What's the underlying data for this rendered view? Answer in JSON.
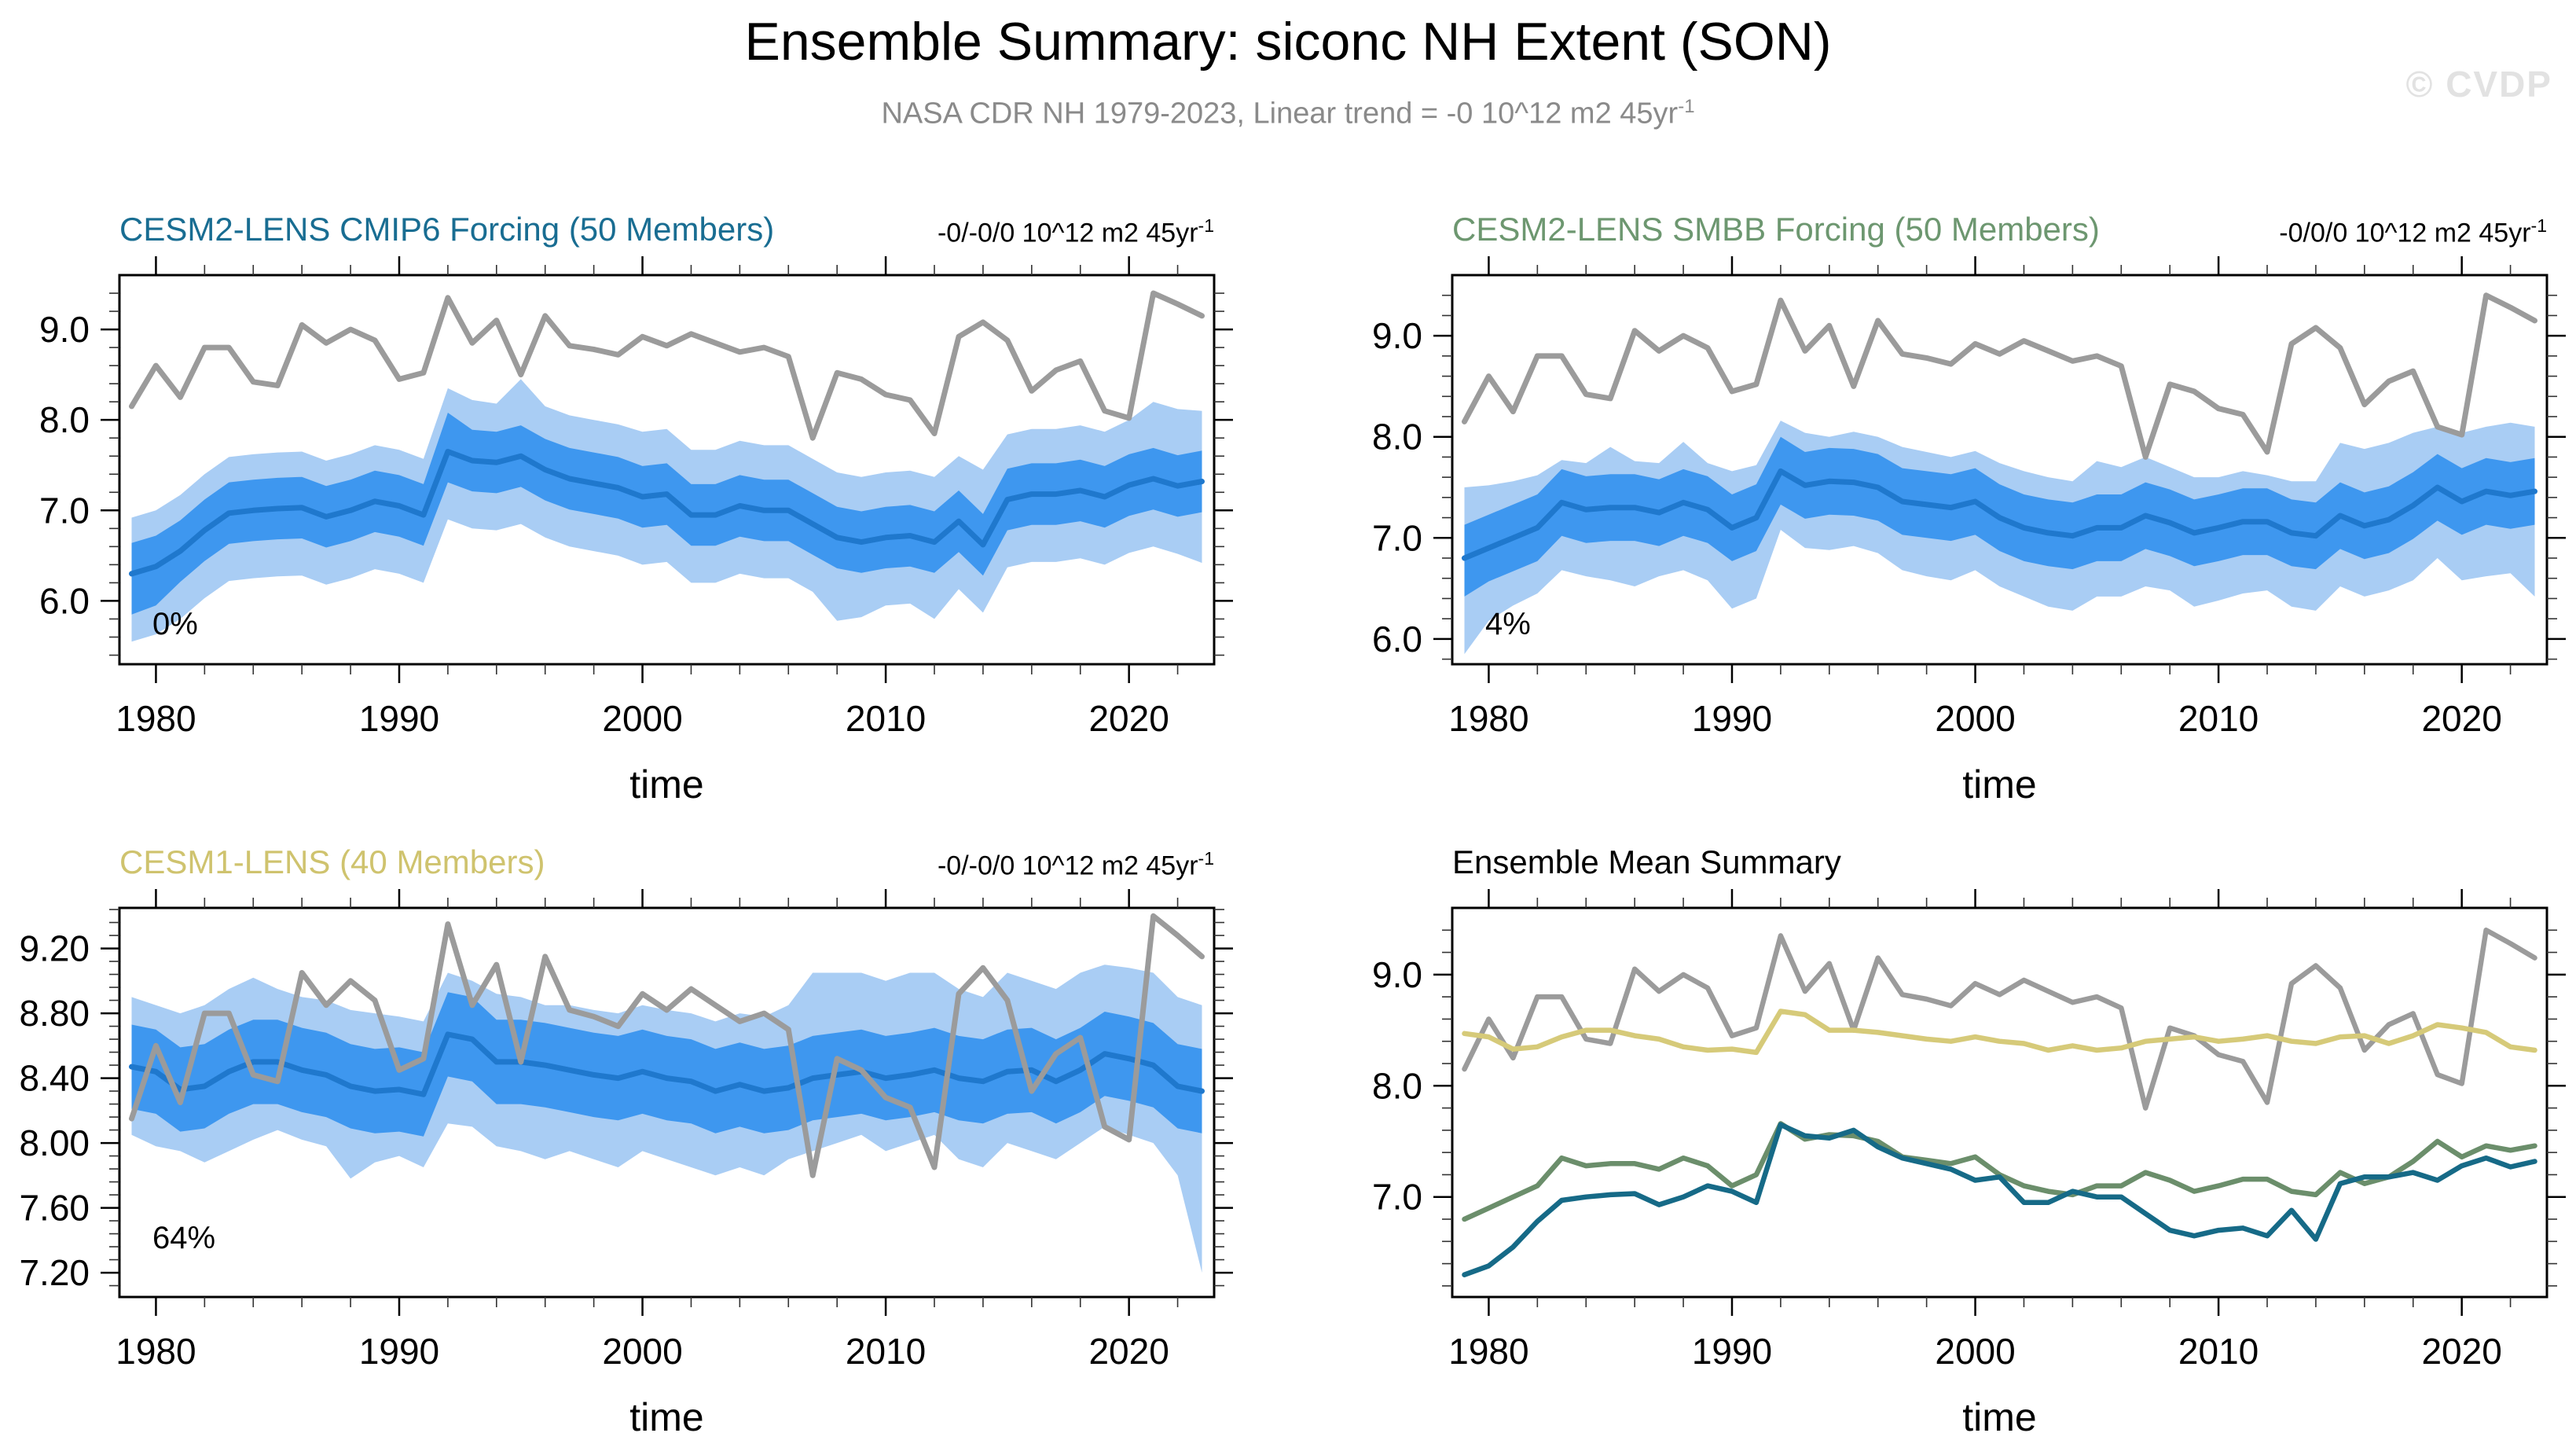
{
  "header": {
    "title": "Ensemble Summary: siconc NH Extent (SON)",
    "subtitle_main": "NASA CDR NH 1979-2023, Linear trend = -0 10^12 m2 45yr",
    "subtitle_sup": "-1",
    "watermark": "© CVDP"
  },
  "colors": {
    "obs": "#9b9b9b",
    "mean_line": "#1f78cd",
    "inner_band": "#3e97ef",
    "outer_band": "#a9cdf4",
    "cmip6": "#166a87",
    "smbb": "#6b8e6b",
    "cesm1": "#d6ca79",
    "frame": "#000000"
  },
  "chart_data": {
    "type": "line",
    "x_years": [
      1979,
      1980,
      1981,
      1982,
      1983,
      1984,
      1985,
      1986,
      1987,
      1988,
      1989,
      1990,
      1991,
      1992,
      1993,
      1994,
      1995,
      1996,
      1997,
      1998,
      1999,
      2000,
      2001,
      2002,
      2003,
      2004,
      2005,
      2006,
      2007,
      2008,
      2009,
      2010,
      2011,
      2012,
      2013,
      2014,
      2015,
      2016,
      2017,
      2018,
      2019,
      2020,
      2021,
      2022,
      2023
    ],
    "xlim": [
      1978.5,
      2023.5
    ],
    "xlabel": "time",
    "grid": false,
    "series": {
      "obs": [
        8.15,
        8.6,
        8.25,
        8.8,
        8.8,
        8.42,
        8.38,
        9.05,
        8.85,
        9.0,
        8.88,
        8.45,
        8.52,
        9.35,
        8.85,
        9.1,
        8.5,
        9.15,
        8.82,
        8.78,
        8.72,
        8.92,
        8.82,
        8.95,
        8.85,
        8.75,
        8.8,
        8.7,
        7.8,
        8.52,
        8.45,
        8.28,
        8.22,
        7.85,
        8.92,
        9.08,
        8.88,
        8.32,
        8.55,
        8.65,
        8.1,
        8.02,
        9.4,
        9.28,
        9.15
      ],
      "cmip6": {
        "mean": [
          6.3,
          6.38,
          6.55,
          6.78,
          6.97,
          7.0,
          7.02,
          7.03,
          6.93,
          7.0,
          7.1,
          7.05,
          6.95,
          7.65,
          7.55,
          7.53,
          7.6,
          7.45,
          7.35,
          7.3,
          7.25,
          7.15,
          7.18,
          6.95,
          6.95,
          7.05,
          7.0,
          7.0,
          6.85,
          6.7,
          6.65,
          6.7,
          6.72,
          6.65,
          6.88,
          6.62,
          7.12,
          7.18,
          7.18,
          7.22,
          7.15,
          7.28,
          7.35,
          7.27,
          7.32
        ],
        "inner_lo": [
          5.85,
          5.95,
          6.21,
          6.44,
          6.63,
          6.66,
          6.68,
          6.69,
          6.59,
          6.66,
          6.76,
          6.71,
          6.61,
          7.31,
          7.21,
          7.19,
          7.26,
          7.11,
          7.01,
          6.96,
          6.91,
          6.81,
          6.84,
          6.61,
          6.61,
          6.71,
          6.66,
          6.66,
          6.51,
          6.36,
          6.31,
          6.36,
          6.38,
          6.31,
          6.54,
          6.28,
          6.78,
          6.84,
          6.84,
          6.88,
          6.81,
          6.94,
          7.01,
          6.93,
          6.98
        ],
        "inner_hi": [
          6.64,
          6.72,
          6.89,
          7.12,
          7.31,
          7.34,
          7.36,
          7.37,
          7.27,
          7.34,
          7.44,
          7.39,
          7.29,
          8.08,
          7.89,
          7.87,
          7.94,
          7.79,
          7.69,
          7.64,
          7.59,
          7.49,
          7.52,
          7.29,
          7.29,
          7.39,
          7.34,
          7.34,
          7.19,
          7.04,
          6.99,
          7.04,
          7.06,
          6.99,
          7.22,
          6.96,
          7.46,
          7.52,
          7.52,
          7.56,
          7.49,
          7.62,
          7.69,
          7.61,
          7.66
        ],
        "outer_lo": [
          5.55,
          5.63,
          5.8,
          6.03,
          6.22,
          6.25,
          6.27,
          6.28,
          6.18,
          6.25,
          6.35,
          6.3,
          6.2,
          6.9,
          6.8,
          6.78,
          6.85,
          6.7,
          6.6,
          6.55,
          6.5,
          6.4,
          6.43,
          6.2,
          6.2,
          6.3,
          6.25,
          6.25,
          6.1,
          5.78,
          5.82,
          5.95,
          5.97,
          5.8,
          6.13,
          5.87,
          6.37,
          6.43,
          6.43,
          6.47,
          6.4,
          6.53,
          6.6,
          6.52,
          6.42
        ],
        "outer_hi": [
          6.92,
          7.0,
          7.17,
          7.4,
          7.59,
          7.62,
          7.64,
          7.65,
          7.55,
          7.62,
          7.72,
          7.67,
          7.57,
          8.35,
          8.22,
          8.18,
          8.45,
          8.15,
          8.05,
          8.0,
          7.95,
          7.87,
          7.9,
          7.67,
          7.67,
          7.77,
          7.72,
          7.72,
          7.57,
          7.42,
          7.37,
          7.42,
          7.44,
          7.37,
          7.6,
          7.45,
          7.84,
          7.9,
          7.9,
          7.94,
          7.87,
          8.0,
          8.2,
          8.12,
          8.1
        ]
      },
      "smbb": {
        "mean": [
          6.8,
          6.9,
          7.0,
          7.1,
          7.35,
          7.28,
          7.3,
          7.3,
          7.25,
          7.35,
          7.28,
          7.1,
          7.2,
          7.66,
          7.52,
          7.56,
          7.55,
          7.5,
          7.36,
          7.33,
          7.3,
          7.36,
          7.2,
          7.1,
          7.05,
          7.02,
          7.1,
          7.1,
          7.22,
          7.15,
          7.05,
          7.1,
          7.16,
          7.16,
          7.05,
          7.02,
          7.22,
          7.12,
          7.18,
          7.32,
          7.5,
          7.36,
          7.46,
          7.42,
          7.46
        ],
        "inner_lo": [
          6.42,
          6.57,
          6.67,
          6.77,
          7.02,
          6.95,
          6.97,
          6.97,
          6.92,
          7.02,
          6.95,
          6.77,
          6.87,
          7.33,
          7.19,
          7.23,
          7.22,
          7.17,
          7.03,
          7.0,
          6.97,
          7.03,
          6.87,
          6.77,
          6.72,
          6.69,
          6.77,
          6.77,
          6.89,
          6.82,
          6.72,
          6.77,
          6.83,
          6.83,
          6.72,
          6.69,
          6.89,
          6.79,
          6.85,
          6.99,
          7.17,
          7.03,
          7.13,
          7.09,
          7.13
        ],
        "inner_hi": [
          7.13,
          7.23,
          7.33,
          7.43,
          7.68,
          7.61,
          7.63,
          7.63,
          7.58,
          7.68,
          7.61,
          7.43,
          7.53,
          8.0,
          7.85,
          7.89,
          7.88,
          7.83,
          7.69,
          7.66,
          7.63,
          7.69,
          7.53,
          7.43,
          7.38,
          7.35,
          7.43,
          7.43,
          7.55,
          7.48,
          7.38,
          7.43,
          7.49,
          7.49,
          7.38,
          7.35,
          7.55,
          7.45,
          7.51,
          7.65,
          7.83,
          7.69,
          7.79,
          7.75,
          7.79
        ],
        "outer_lo": [
          5.85,
          6.18,
          6.33,
          6.45,
          6.68,
          6.62,
          6.58,
          6.52,
          6.62,
          6.68,
          6.58,
          6.3,
          6.4,
          7.08,
          6.9,
          6.88,
          6.92,
          6.85,
          6.68,
          6.62,
          6.58,
          6.68,
          6.52,
          6.42,
          6.32,
          6.28,
          6.42,
          6.42,
          6.52,
          6.48,
          6.32,
          6.38,
          6.45,
          6.48,
          6.32,
          6.28,
          6.52,
          6.42,
          6.48,
          6.58,
          6.8,
          6.58,
          6.62,
          6.65,
          6.42
        ],
        "outer_hi": [
          7.5,
          7.52,
          7.56,
          7.62,
          7.77,
          7.74,
          7.9,
          7.76,
          7.74,
          7.95,
          7.74,
          7.66,
          7.72,
          8.16,
          8.04,
          8.0,
          8.05,
          8.0,
          7.9,
          7.85,
          7.8,
          7.86,
          7.74,
          7.66,
          7.6,
          7.56,
          7.76,
          7.7,
          7.8,
          7.7,
          7.6,
          7.6,
          7.66,
          7.62,
          7.56,
          7.56,
          7.94,
          7.88,
          7.94,
          8.04,
          8.1,
          8.04,
          8.1,
          8.14,
          8.1
        ]
      },
      "cesm1": {
        "mean": [
          8.47,
          8.44,
          8.33,
          8.35,
          8.44,
          8.5,
          8.5,
          8.45,
          8.42,
          8.35,
          8.32,
          8.33,
          8.3,
          8.67,
          8.64,
          8.5,
          8.5,
          8.48,
          8.45,
          8.42,
          8.4,
          8.44,
          8.4,
          8.38,
          8.32,
          8.36,
          8.32,
          8.34,
          8.4,
          8.42,
          8.44,
          8.4,
          8.42,
          8.45,
          8.4,
          8.38,
          8.44,
          8.45,
          8.38,
          8.45,
          8.55,
          8.52,
          8.48,
          8.35,
          8.32
        ],
        "inner_lo": [
          8.21,
          8.18,
          8.07,
          8.09,
          8.18,
          8.24,
          8.24,
          8.19,
          8.16,
          8.09,
          8.06,
          8.07,
          8.04,
          8.41,
          8.38,
          8.24,
          8.24,
          8.22,
          8.19,
          8.16,
          8.14,
          8.18,
          8.14,
          8.12,
          8.06,
          8.1,
          8.06,
          8.08,
          8.14,
          8.16,
          8.18,
          8.14,
          8.16,
          8.19,
          8.14,
          8.12,
          8.18,
          8.19,
          8.12,
          8.19,
          8.29,
          8.26,
          8.22,
          8.09,
          8.06
        ],
        "inner_hi": [
          8.73,
          8.7,
          8.59,
          8.61,
          8.7,
          8.76,
          8.76,
          8.71,
          8.68,
          8.61,
          8.58,
          8.59,
          8.56,
          8.93,
          8.9,
          8.76,
          8.76,
          8.74,
          8.71,
          8.68,
          8.66,
          8.7,
          8.66,
          8.64,
          8.58,
          8.62,
          8.58,
          8.6,
          8.66,
          8.68,
          8.7,
          8.66,
          8.68,
          8.71,
          8.66,
          8.64,
          8.7,
          8.71,
          8.64,
          8.71,
          8.81,
          8.78,
          8.74,
          8.61,
          8.58
        ],
        "outer_lo": [
          8.05,
          7.98,
          7.95,
          7.88,
          7.95,
          8.02,
          8.08,
          8.02,
          7.98,
          7.78,
          7.88,
          7.92,
          7.85,
          8.12,
          8.1,
          7.98,
          7.95,
          7.9,
          7.95,
          7.9,
          7.85,
          7.95,
          7.9,
          7.85,
          7.8,
          7.85,
          7.8,
          7.9,
          7.95,
          8.0,
          8.05,
          7.95,
          8.0,
          8.05,
          7.9,
          7.85,
          8.0,
          7.95,
          7.9,
          8.0,
          8.1,
          8.05,
          8.0,
          7.8,
          7.2
        ],
        "outer_hi": [
          8.9,
          8.85,
          8.8,
          8.85,
          8.95,
          9.02,
          8.95,
          8.9,
          8.88,
          8.82,
          8.8,
          8.78,
          8.75,
          9.05,
          9.0,
          8.92,
          8.9,
          8.85,
          8.85,
          8.82,
          8.8,
          8.85,
          8.82,
          8.8,
          8.75,
          8.8,
          8.78,
          8.85,
          9.05,
          9.05,
          9.05,
          9.0,
          9.05,
          9.05,
          8.95,
          8.9,
          9.05,
          9.0,
          8.95,
          9.05,
          9.1,
          9.08,
          9.05,
          8.9,
          8.85
        ]
      }
    },
    "panels": [
      {
        "title": "CESM2-LENS CMIP6 Forcing (50 Members)",
        "title_color": "#196d92",
        "trend_main": "-0/-0/0 10^12 m2 45yr",
        "trend_sup": "-1",
        "percent": "0%",
        "xlabel": "time",
        "ylim": [
          5.3,
          9.6
        ],
        "ymajor": [
          6.0,
          7.0,
          8.0,
          9.0
        ],
        "ytick_labels": [
          "6.0",
          "7.0",
          "8.0",
          "9.0"
        ],
        "yminor_step": 0.2,
        "xtick_labels": [
          "1980",
          "1990",
          "2000",
          "2010",
          "2020"
        ],
        "ensemble": "cmip6"
      },
      {
        "title": "CESM2-LENS SMBB Forcing (50 Members)",
        "title_color": "#6d9770",
        "trend_main": "-0/0/0 10^12 m2 45yr",
        "trend_sup": "-1",
        "percent": "4%",
        "xlabel": "time",
        "ylim": [
          5.75,
          9.6
        ],
        "ymajor": [
          6.0,
          7.0,
          8.0,
          9.0
        ],
        "ytick_labels": [
          "6.0",
          "7.0",
          "8.0",
          "9.0"
        ],
        "yminor_step": 0.2,
        "xtick_labels": [
          "1980",
          "1990",
          "2000",
          "2010",
          "2020"
        ],
        "ensemble": "smbb"
      },
      {
        "title": "CESM1-LENS (40 Members)",
        "title_color": "#cfc36e",
        "trend_main": "-0/-0/0 10^12 m2 45yr",
        "trend_sup": "-1",
        "percent": "64%",
        "xlabel": "time",
        "ylim": [
          7.05,
          9.45
        ],
        "ymajor": [
          7.2,
          7.6,
          8.0,
          8.4,
          8.8,
          9.2
        ],
        "ytick_labels": [
          "7.20",
          "7.60",
          "8.00",
          "8.40",
          "8.80",
          "9.20"
        ],
        "yminor_step": 0.08,
        "xtick_labels": [
          "1980",
          "1990",
          "2000",
          "2010",
          "2020"
        ],
        "ensemble": "cesm1"
      },
      {
        "title": "Ensemble Mean Summary",
        "title_color": "#000000",
        "trend_main": "",
        "trend_sup": "",
        "percent": "",
        "xlabel": "time",
        "ylim": [
          6.1,
          9.6
        ],
        "ymajor": [
          7.0,
          8.0,
          9.0
        ],
        "ytick_labels": [
          "7.0",
          "8.0",
          "9.0"
        ],
        "yminor_step": 0.2,
        "xtick_labels": [
          "1980",
          "1990",
          "2000",
          "2010",
          "2020"
        ],
        "lines": [
          {
            "series": "obs",
            "color_key": "obs"
          },
          {
            "series": "cesm1",
            "color_key": "cesm1"
          },
          {
            "series": "smbb",
            "color_key": "smbb"
          },
          {
            "series": "cmip6",
            "color_key": "cmip6"
          }
        ]
      }
    ]
  }
}
